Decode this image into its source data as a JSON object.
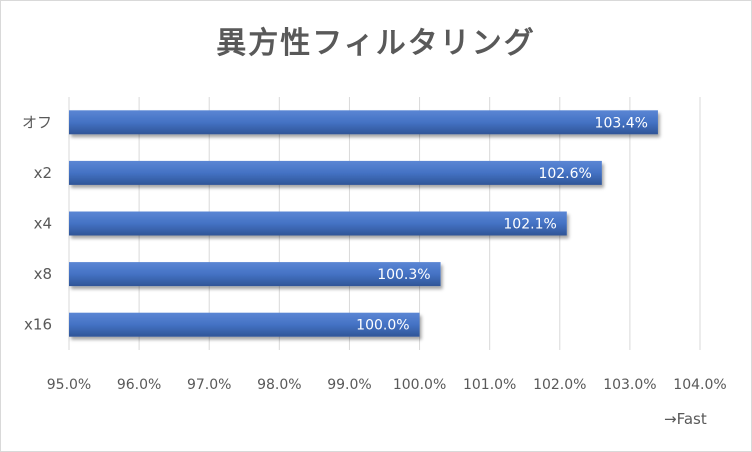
{
  "chart_data": {
    "type": "bar",
    "orientation": "horizontal",
    "title": "異方性フィルタリング",
    "categories": [
      "オフ",
      "x2",
      "x4",
      "x8",
      "x16"
    ],
    "series": [
      {
        "values": [
          103.4,
          102.6,
          102.1,
          100.3,
          100.0
        ],
        "labels": [
          "103.4%",
          "102.6%",
          "102.1%",
          "100.3%",
          "100.0%"
        ],
        "color": "#4472c4"
      }
    ],
    "xlim": [
      95,
      104
    ],
    "xticks": [
      "95.0%",
      "96.0%",
      "97.0%",
      "98.0%",
      "99.0%",
      "100.0%",
      "101.0%",
      "102.0%",
      "103.0%",
      "104.0%"
    ],
    "axis_note": "→Fast",
    "grid": true,
    "legend": "none"
  }
}
